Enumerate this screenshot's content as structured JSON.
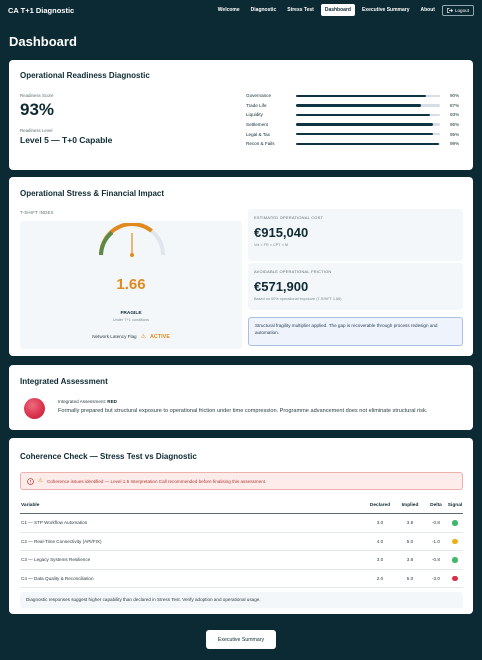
{
  "nav": {
    "brand": "CA T+1 Diagnostic",
    "links": [
      "Welcome",
      "Diagnostic",
      "Stress Test",
      "Dashboard",
      "Executive Summary",
      "About"
    ],
    "logout_label": "Logout"
  },
  "page": {
    "title": "Dashboard"
  },
  "readiness": {
    "title": "Operational Readiness Diagnostic",
    "score_label": "Readiness Score",
    "score_value": "93%",
    "level_label": "Readiness Level",
    "level_value": "Level 5 — T+0 Capable",
    "bars": [
      {
        "label": "Governance",
        "pct": "90%",
        "value": 90
      },
      {
        "label": "Trade Life",
        "pct": "87%",
        "value": 87
      },
      {
        "label": "Liquidity",
        "pct": "93%",
        "value": 93
      },
      {
        "label": "Settlement",
        "pct": "95%",
        "value": 95
      },
      {
        "label": "Legal & Tax",
        "pct": "95%",
        "value": 95
      },
      {
        "label": "Recon & Fails",
        "pct": "99%",
        "value": 99
      }
    ],
    "bar_color": "#0d3440"
  },
  "stress": {
    "title": "Operational Stress & Financial Impact",
    "index_label": "T-SHIFT INDEX",
    "gauge_value": "1.66",
    "gauge_status": "FRAGILE",
    "gauge_caption": "Under T+1 conditions",
    "latency_label": "Network Latency Flag",
    "latency_value": "ACTIVE",
    "cost_label": "ESTIMATED OPERATIONAL COST",
    "cost_value": "€915,040",
    "cost_sub": "Vol × FR × CPT × M",
    "friction_label": "AVOIDABLE OPERATIONAL FRICTION",
    "friction_value": "€571,900",
    "friction_sub": "Based on 60% operational exposure (T-SHIFT 1.66)",
    "info": "Structural fragility multiplier applied. The gap is recoverable through process redesign and automation.",
    "accent": "#e08a1e"
  },
  "assessment": {
    "title": "Integrated Assessment",
    "rating_label": "Integrated Assessment:",
    "rating_value": "RED",
    "text": "Formally prepared but structural exposure to operational friction under time compression. Programme advancement does not eliminate structural risk.",
    "dot_color": "#d8304a"
  },
  "coherence": {
    "title": "Coherence Check — Stress Test vs Diagnostic",
    "alert": "Coherence issues identified — Level 1.5 Interpretation Call recommended before finalising this assessment.",
    "columns": [
      "Variable",
      "Declared",
      "Implied",
      "Delta",
      "Signal"
    ],
    "rows": [
      {
        "variable": "C1 — STP Workflow Automation",
        "declared": "3.0",
        "implied": "3.8",
        "delta": "-0.8",
        "signal": "#3fb86b"
      },
      {
        "variable": "C2 — Real-Time Connectivity (API/FIX)",
        "declared": "4.0",
        "implied": "5.0",
        "delta": "-1.0",
        "signal": "#e8b019"
      },
      {
        "variable": "C3 — Legacy Systems Resilience",
        "declared": "3.0",
        "implied": "3.8",
        "delta": "-0.8",
        "signal": "#3fb86b"
      },
      {
        "variable": "C4 — Data Quality & Reconciliation",
        "declared": "2.0",
        "implied": "5.0",
        "delta": "-3.0",
        "signal": "#d8304a"
      }
    ],
    "note": "Diagnostic responses suggest higher capability than declared in Stress Test. Verify adoption and operational usage."
  },
  "footer": {
    "button_label": "Executive Summary"
  }
}
